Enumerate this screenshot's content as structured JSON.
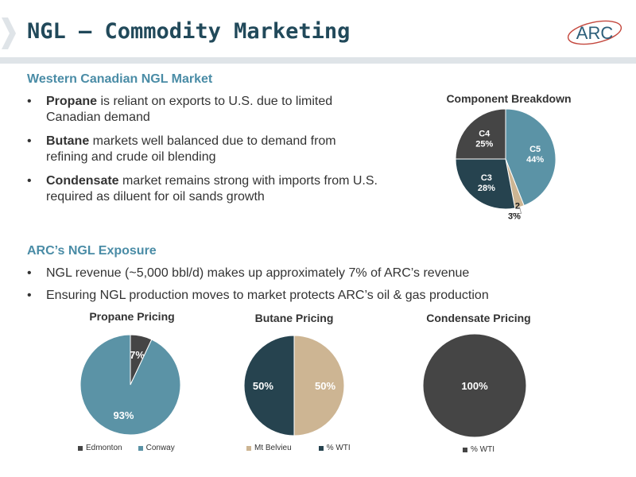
{
  "header": {
    "title": "NGL – Commodity Marketing",
    "logo_text": "ARC"
  },
  "section1": {
    "heading": "Western Canadian NGL Market",
    "bullets": [
      {
        "bold": "Propane",
        "rest": " is reliant on exports to U.S. due to limited",
        "cont": "Canadian demand"
      },
      {
        "bold": "Butane",
        "rest": " markets well balanced due to demand from",
        "cont": "refining and crude oil blending"
      },
      {
        "bold": "Condensate",
        "rest": " market remains strong with imports from U.S.",
        "cont": "required as diluent for oil sands growth"
      }
    ]
  },
  "section2": {
    "heading": "ARC’s NGL Exposure",
    "bullets": [
      "NGL revenue (~5,000 bbl/d) makes up approximately 7% of ARC’s revenue",
      "Ensuring NGL production moves to market protects ARC’s oil & gas production"
    ]
  },
  "colors": {
    "dark_gray": "#454545",
    "steel_blue": "#5b93a6",
    "tan": "#cdb593",
    "dark_teal": "#26434f",
    "heading_blue": "#4a8ca6",
    "title_navy": "#21495a"
  },
  "chart_data": [
    {
      "type": "pie",
      "title": "Component Breakdown",
      "slices": [
        {
          "label": "C5",
          "value": 44,
          "text": "44%",
          "color": "#5b93a6"
        },
        {
          "label": "C2",
          "value": 3,
          "text": "3%",
          "color": "#cdb593"
        },
        {
          "label": "C3",
          "value": 28,
          "text": "28%",
          "color": "#26434f"
        },
        {
          "label": "C4",
          "value": 25,
          "text": "25%",
          "color": "#454545"
        }
      ]
    },
    {
      "type": "pie",
      "title": "Propane Pricing",
      "slices": [
        {
          "label": "Edmonton",
          "value": 7,
          "text": "7%",
          "color": "#454545"
        },
        {
          "label": "Conway",
          "value": 93,
          "text": "93%",
          "color": "#5b93a6"
        }
      ],
      "legend": [
        "Edmonton",
        "Conway"
      ]
    },
    {
      "type": "pie",
      "title": "Butane Pricing",
      "slices": [
        {
          "label": "Mt Belvieu",
          "value": 50,
          "text": "50%",
          "color": "#cdb593"
        },
        {
          "label": "% WTI",
          "value": 50,
          "text": "50%",
          "color": "#26434f"
        }
      ],
      "legend": [
        "Mt Belvieu",
        "% WTI"
      ]
    },
    {
      "type": "pie",
      "title": "Condensate Pricing",
      "slices": [
        {
          "label": "% WTI",
          "value": 100,
          "text": "100%",
          "color": "#454545"
        }
      ],
      "legend": [
        "% WTI"
      ]
    }
  ]
}
